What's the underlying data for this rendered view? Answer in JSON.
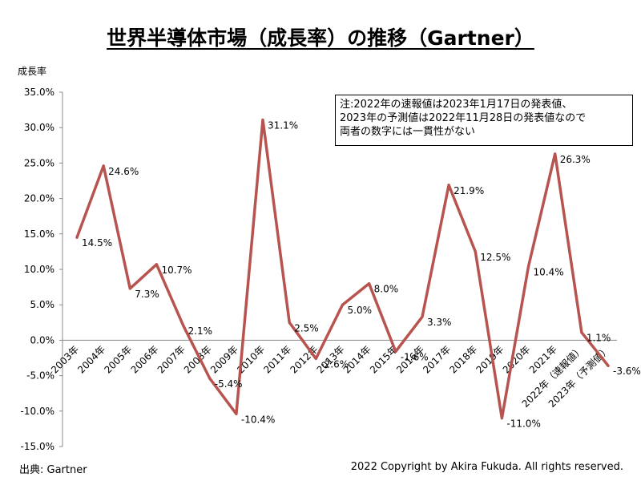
{
  "chart_data": {
    "type": "line",
    "title": "世界半導体市場（成長率）の推移（Gartner）",
    "ylabel": "成長率",
    "xlabel": "",
    "ylim": [
      -15,
      35
    ],
    "yticks": [
      "35.0%",
      "30.0%",
      "25.0%",
      "20.0%",
      "15.0%",
      "10.0%",
      "5.0%",
      "0.0%",
      "-5.0%",
      "-10.0%",
      "-15.0%"
    ],
    "categories": [
      "2003年",
      "2004年",
      "2005年",
      "2006年",
      "2007年",
      "2008年",
      "2009年",
      "2010年",
      "2011年",
      "2012年",
      "2013年",
      "2014年",
      "2015年",
      "2016年",
      "2017年",
      "2018年",
      "2019年",
      "2020年",
      "2021年",
      "2022年（速報値）",
      "2023年（予測値）"
    ],
    "values": [
      14.5,
      24.6,
      7.3,
      10.7,
      2.1,
      -5.4,
      -10.4,
      31.1,
      2.5,
      -2.6,
      5.0,
      8.0,
      -1.6,
      3.3,
      21.9,
      12.5,
      -11.0,
      10.4,
      26.3,
      1.1,
      -3.6
    ],
    "data_labels": [
      "14.5%",
      "24.6%",
      "7.3%",
      "10.7%",
      "2.1%",
      "-5.4%",
      "-10.4%",
      "31.1%",
      "2.5%",
      "-2.6%",
      "5.0%",
      "8.0%",
      "-1.6%",
      "3.3%",
      "21.9%",
      "12.5%",
      "-11.0%",
      "10.4%",
      "26.3%",
      "1.1%",
      "-3.6%"
    ],
    "line_color": "#B85450",
    "grid": false,
    "legend": "none"
  },
  "note_lines": [
    "注:2022年の速報値は2023年1月17日の発表値、",
    "2023年の予測値は2022年11月28日の発表値なので",
    "両者の数字には一貫性がない"
  ],
  "source": "出典: Gartner",
  "copyright": "2022 Copyright by Akira Fukuda. All rights reserved."
}
